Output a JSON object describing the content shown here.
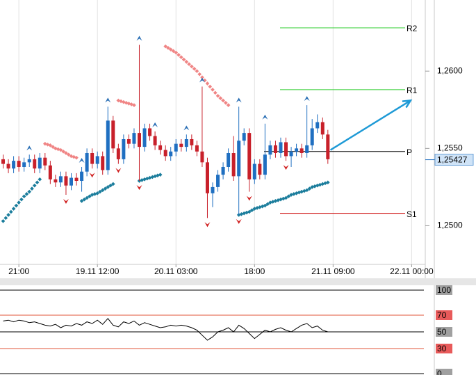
{
  "chart_data": [
    {
      "type": "candlestick",
      "x": [
        -3,
        -2,
        -1,
        0,
        1,
        2,
        3,
        4,
        5,
        6,
        7,
        8,
        9,
        10,
        11,
        12,
        13,
        14,
        15,
        16,
        17,
        18,
        19,
        20,
        21,
        22,
        23,
        24,
        25,
        26,
        27,
        28,
        29,
        30,
        31,
        32,
        33,
        34,
        35,
        36,
        37,
        38,
        39,
        40,
        41,
        42,
        43,
        44,
        45,
        46,
        47,
        48,
        49,
        50,
        51,
        52,
        53,
        54,
        55,
        56,
        57,
        58,
        59
      ],
      "open": [
        1.2543,
        1.254,
        1.2537,
        1.2542,
        1.2538,
        1.2541,
        1.2543,
        1.2537,
        1.2544,
        1.2539,
        1.253,
        1.2528,
        1.2532,
        1.2526,
        1.2531,
        1.2529,
        1.2535,
        1.2547,
        1.254,
        1.2545,
        1.2536,
        1.2568,
        1.255,
        1.2543,
        1.2556,
        1.2553,
        1.256,
        1.2551,
        1.2563,
        1.2558,
        1.2552,
        1.2549,
        1.2545,
        1.2548,
        1.2553,
        1.2551,
        1.2556,
        1.2552,
        1.2548,
        1.2541,
        1.2521,
        1.2525,
        1.2533,
        1.2538,
        1.2547,
        1.2532,
        1.2555,
        1.256,
        1.253,
        1.254,
        1.2533,
        1.2546,
        1.2552,
        1.2547,
        1.2554,
        1.2545,
        1.2548,
        1.255,
        1.2547,
        1.2552,
        1.2563,
        1.2567,
        1.2559
      ],
      "high": [
        1.2546,
        1.2543,
        1.2545,
        1.2545,
        1.2544,
        1.2546,
        1.2546,
        1.2547,
        1.2547,
        1.2542,
        1.2533,
        1.2535,
        1.2535,
        1.2534,
        1.2534,
        1.2538,
        1.255,
        1.255,
        1.2548,
        1.2548,
        1.2577,
        1.2571,
        1.2553,
        1.2559,
        1.2559,
        1.2563,
        1.2617,
        1.2566,
        1.2566,
        1.2561,
        1.2555,
        1.2552,
        1.2551,
        1.2556,
        1.2556,
        1.2559,
        1.2559,
        1.2555,
        1.259,
        1.2544,
        1.2528,
        1.2536,
        1.2541,
        1.255,
        1.2558,
        1.2577,
        1.2563,
        1.2563,
        1.2543,
        1.2543,
        1.2566,
        1.2555,
        1.2555,
        1.2557,
        1.2557,
        1.2551,
        1.2553,
        1.2553,
        1.2578,
        1.2569,
        1.2572,
        1.257,
        1.2562
      ],
      "low": [
        1.2537,
        1.2534,
        1.2534,
        1.2535,
        1.2535,
        1.2538,
        1.2534,
        1.2534,
        1.2536,
        1.2527,
        1.2525,
        1.2525,
        1.252,
        1.2523,
        1.2526,
        1.2522,
        1.2532,
        1.2537,
        1.2537,
        1.2533,
        1.2533,
        1.2547,
        1.254,
        1.254,
        1.255,
        1.255,
        1.2529,
        1.2548,
        1.2555,
        1.2549,
        1.2546,
        1.2542,
        1.2542,
        1.2545,
        1.2548,
        1.2548,
        1.2549,
        1.2545,
        1.2538,
        1.2505,
        1.2512,
        1.2522,
        1.253,
        1.2535,
        1.2529,
        1.2507,
        1.2552,
        1.2522,
        1.2527,
        1.253,
        1.253,
        1.2543,
        1.2544,
        1.2544,
        1.2542,
        1.2538,
        1.2545,
        1.2544,
        1.2544,
        1.2549,
        1.256,
        1.2556,
        1.254
      ],
      "close": [
        1.254,
        1.2537,
        1.2542,
        1.2538,
        1.2541,
        1.2543,
        1.2537,
        1.2544,
        1.2539,
        1.253,
        1.2528,
        1.2532,
        1.2526,
        1.2531,
        1.2529,
        1.2535,
        1.2547,
        1.254,
        1.2545,
        1.2536,
        1.2568,
        1.255,
        1.2543,
        1.2556,
        1.2553,
        1.256,
        1.2551,
        1.2563,
        1.2558,
        1.2552,
        1.2549,
        1.2545,
        1.2548,
        1.2553,
        1.2551,
        1.2556,
        1.2552,
        1.2548,
        1.2541,
        1.2521,
        1.2525,
        1.2533,
        1.2538,
        1.2547,
        1.2532,
        1.2555,
        1.256,
        1.253,
        1.254,
        1.2533,
        1.2546,
        1.2552,
        1.2547,
        1.2554,
        1.2545,
        1.2548,
        1.255,
        1.2547,
        1.2552,
        1.2563,
        1.2567,
        1.2559,
        1.2543
      ],
      "up_color": "#1f6fc1",
      "down_color": "#c8202a",
      "sar": [
        1.2503,
        1.2507,
        1.2511,
        1.2515,
        1.2519,
        1.2522,
        1.2526,
        1.253,
        1.2553,
        1.2552,
        1.255,
        1.2549,
        1.2547,
        1.2545,
        1.2544,
        1.2516,
        1.2518,
        1.252,
        1.2521,
        1.2523,
        1.2525,
        1.2527,
        1.2581,
        1.258,
        1.2579,
        1.2578,
        1.2529,
        1.253,
        1.2531,
        1.2532,
        1.2533,
        1.2616,
        1.2614,
        1.2612,
        1.2609,
        1.2606,
        1.2603,
        1.26,
        1.2596,
        1.2592,
        1.2588,
        1.2584,
        1.2581,
        1.2578,
        null,
        1.2507,
        1.2508,
        1.2509,
        1.2511,
        1.2512,
        1.2513,
        1.2515,
        1.2516,
        1.2517,
        1.2518,
        1.252,
        1.2521,
        1.2522,
        1.2523,
        1.2525,
        1.2526,
        1.2527,
        1.2528
      ],
      "sar_up_color": "#1b7d9c",
      "sar_down_color": "#f08585",
      "fractals_up": [
        5,
        15,
        20,
        26,
        29,
        35,
        38,
        45,
        50,
        58
      ],
      "fractal_up_color": "#2a6fb5",
      "fractals_down": [
        12,
        17,
        22,
        26,
        39,
        45,
        47,
        54
      ],
      "fractal_down_color": "#d02020",
      "pivots": [
        {
          "name": "R2",
          "value": 1.2628,
          "color": "#2ecc2e"
        },
        {
          "name": "R1",
          "value": 1.2588,
          "color": "#2ecc2e"
        },
        {
          "name": "P",
          "value": 1.2548,
          "color": "#000000"
        },
        {
          "name": "S1",
          "value": 1.2508,
          "color": "#cc0000"
        }
      ],
      "current_price": {
        "value": 1.25427,
        "label": "1,25427"
      },
      "trend_arrow": {
        "x": [
          59.5,
          74.8
        ],
        "values": [
          1.2549,
          1.2581
        ],
        "color": "#1e9ad6"
      },
      "xlim": [
        -3.6,
        77.6
      ],
      "xticks": [
        {
          "value": 0,
          "label": "21:00"
        },
        {
          "value": 15,
          "label": "19.11 12:00"
        },
        {
          "value": 30,
          "label": "20.11 03:00"
        },
        {
          "value": 45,
          "label": "18:00"
        },
        {
          "value": 60,
          "label": "21.11 09:00"
        },
        {
          "value": 75,
          "label": "22.11 00:00"
        }
      ],
      "ylim": [
        1.2475,
        1.2646
      ],
      "yticks": [
        {
          "value": 1.25,
          "label": "1,2500"
        },
        {
          "value": 1.255,
          "label": "1,2550"
        },
        {
          "value": 1.26,
          "label": "1,2600"
        }
      ]
    },
    {
      "type": "line",
      "values": [
        63,
        64,
        62,
        64,
        63,
        61,
        62,
        60,
        58,
        57,
        59,
        55,
        58,
        57,
        60,
        58,
        62,
        60,
        64,
        59,
        66,
        58,
        56,
        62,
        60,
        63,
        58,
        61,
        59,
        57,
        55,
        56,
        58,
        57,
        58,
        57,
        55,
        52,
        46,
        40,
        44,
        50,
        52,
        55,
        50,
        58,
        54,
        48,
        42,
        47,
        52,
        50,
        53,
        55,
        52,
        50,
        54,
        58,
        60,
        55,
        57,
        52,
        50
      ],
      "color": "#000000",
      "ylim": [
        0,
        100
      ],
      "yticks": [
        100,
        70,
        50,
        30,
        0
      ],
      "tick_colors": [
        "#000000",
        "#e0553a",
        "#000000",
        "#e0553a",
        "#000000"
      ],
      "tick_label_colors": [
        "#a0a0a0",
        "#e85a5a",
        "#a0a0a0",
        "#e85a5a",
        "#a0a0a0"
      ]
    }
  ]
}
